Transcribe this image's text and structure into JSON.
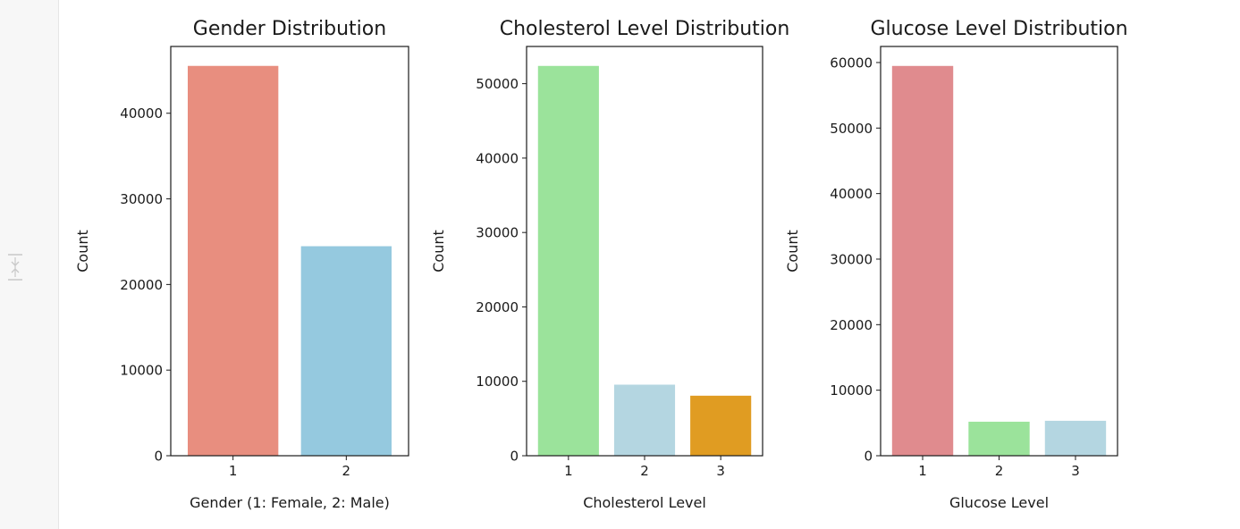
{
  "chart_data": [
    {
      "type": "bar",
      "title": "Gender Distribution",
      "xlabel": "Gender (1: Female, 2: Male)",
      "ylabel": "Count",
      "categories": [
        "1",
        "2"
      ],
      "values": [
        45530,
        24470
      ],
      "colors": [
        "#e88e7f",
        "#95c9df"
      ],
      "ylim": [
        0,
        47800
      ],
      "yticks": [
        0,
        10000,
        20000,
        30000,
        40000
      ],
      "ytick_labels": [
        "0",
        "10000",
        "20000",
        "30000",
        "40000"
      ],
      "grid": false
    },
    {
      "type": "bar",
      "title": "Cholesterol Level Distribution",
      "xlabel": "Cholesterol Level",
      "ylabel": "Count",
      "categories": [
        "1",
        "2",
        "3"
      ],
      "values": [
        52385,
        9549,
        8066
      ],
      "colors": [
        "#9be39b",
        "#b4d6e1",
        "#e09c22"
      ],
      "ylim": [
        0,
        55000
      ],
      "yticks": [
        0,
        10000,
        20000,
        30000,
        40000,
        50000
      ],
      "ytick_labels": [
        "0",
        "10000",
        "20000",
        "30000",
        "40000",
        "50000"
      ],
      "grid": false
    },
    {
      "type": "bar",
      "title": "Glucose Level Distribution",
      "xlabel": "Glucose Level",
      "ylabel": "Count",
      "categories": [
        "1",
        "2",
        "3"
      ],
      "values": [
        59479,
        5190,
        5331
      ],
      "colors": [
        "#e08b8e",
        "#9be39b",
        "#b4d6e1"
      ],
      "ylim": [
        0,
        62450
      ],
      "yticks": [
        0,
        10000,
        20000,
        30000,
        40000,
        50000,
        60000
      ],
      "ytick_labels": [
        "0",
        "10000",
        "20000",
        "30000",
        "40000",
        "50000",
        "60000"
      ],
      "grid": false
    }
  ],
  "ui": {
    "collapse_icon": "collapse-output-icon"
  }
}
